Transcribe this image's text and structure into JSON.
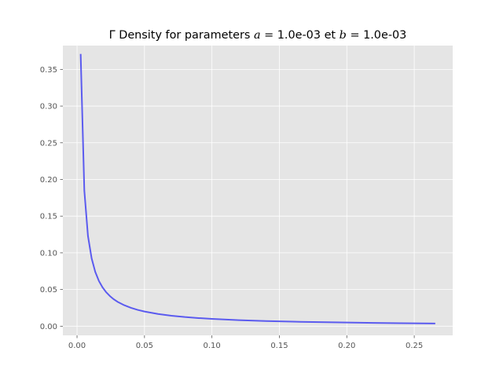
{
  "chart_data": {
    "type": "line",
    "title": {
      "prefix": "Γ Density for parameters ",
      "a_symbol": "a",
      "a_value": " = 1.0e-03",
      "conj": " et ",
      "b_symbol": "b",
      "b_value": " = 1.0e-03"
    },
    "xlabel": "",
    "ylabel": "",
    "xlim": [
      -0.0105,
      0.2785
    ],
    "ylim": [
      -0.0125,
      0.3825
    ],
    "xticks": [
      0.0,
      0.05,
      0.1,
      0.15,
      0.2,
      0.25
    ],
    "xtick_labels": [
      "0.00",
      "0.05",
      "0.10",
      "0.15",
      "0.20",
      "0.25"
    ],
    "yticks": [
      0.0,
      0.05,
      0.1,
      0.15,
      0.2,
      0.25,
      0.3,
      0.35
    ],
    "ytick_labels": [
      "0.00",
      "0.05",
      "0.10",
      "0.15",
      "0.20",
      "0.25",
      "0.30",
      "0.35"
    ],
    "grid": true,
    "series": [
      {
        "name": "Gamma density",
        "color": "#5b5bef",
        "x": [
          0.0027,
          0.0054,
          0.0081,
          0.0108,
          0.0135,
          0.0162,
          0.0189,
          0.0216,
          0.0243,
          0.027,
          0.03,
          0.035,
          0.04,
          0.045,
          0.05,
          0.06,
          0.07,
          0.08,
          0.09,
          0.1,
          0.12,
          0.14,
          0.16,
          0.18,
          0.2,
          0.22,
          0.24,
          0.265
        ],
        "y": [
          0.37,
          0.185,
          0.123,
          0.0926,
          0.0741,
          0.0617,
          0.0529,
          0.0463,
          0.0412,
          0.037,
          0.0333,
          0.0286,
          0.025,
          0.0222,
          0.02,
          0.0167,
          0.0143,
          0.0125,
          0.0111,
          0.01,
          0.0083,
          0.0071,
          0.0062,
          0.0055,
          0.005,
          0.0045,
          0.0041,
          0.0037
        ]
      }
    ]
  },
  "colors": {
    "plot_background": "#e5e5e5",
    "grid": "#ffffff",
    "tick_label": "#555555",
    "line": "#5b5bef"
  }
}
